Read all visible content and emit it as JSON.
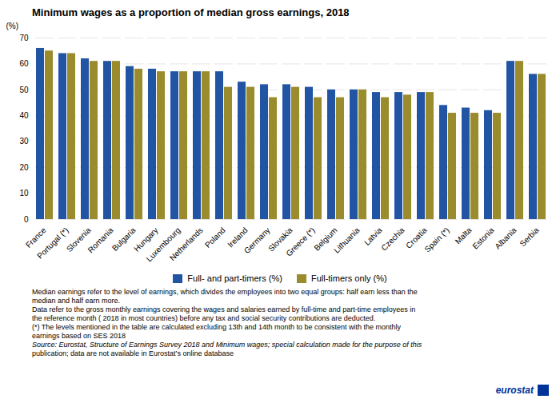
{
  "chart_data": {
    "type": "bar",
    "title": "Minimum wages as a proportion of median gross earnings, 2018",
    "ylabel": "(%)",
    "categories": [
      "France",
      "Portugal (*)",
      "Slovenia",
      "Romania",
      "Bulgaria",
      "Hungary",
      "Luxembourg",
      "Netherlands",
      "Poland",
      "Ireland",
      "Germany",
      "Slovakia",
      "Greece (*)",
      "Belgium",
      "Lithuania",
      "Latvia",
      "Czechia",
      "Croatia",
      "Spain (*)",
      "Malta",
      "Estonia",
      "Albania",
      "Serbia"
    ],
    "series": [
      {
        "name": "Full- and part-timers (%)",
        "color": "#2155A3",
        "values": [
          66,
          64,
          62,
          61,
          59,
          58,
          57,
          57,
          57,
          53,
          52,
          52,
          51,
          50,
          50,
          49,
          49,
          49,
          44,
          43,
          42,
          61,
          56
        ]
      },
      {
        "name": "Full-timers only (%)",
        "color": "#9A8C2C",
        "values": [
          65,
          64,
          61,
          61,
          58,
          57,
          57,
          57,
          51,
          51,
          47,
          51,
          47,
          47,
          50,
          47,
          48,
          49,
          41,
          41,
          41,
          61,
          56
        ]
      }
    ],
    "ylim": [
      0,
      70
    ],
    "yticks": [
      0,
      10,
      20,
      30,
      40,
      50,
      60,
      70
    ],
    "grid": true,
    "legend": "bottom",
    "annotations": [
      "Median earnings refer to the level of earnings, which divides the employees into two equal groups: half earn less than the",
      "median and half earn more.",
      "Data refer to the gross monthly earnings covering the wages and salaries earned by full-time and part-time employees in",
      "the reference month ( 2018 in most countries) before any tax and social security contributions  are deducted.",
      "(*) The levels mentioned in the table are calculated excluding 13th and 14th month to be consistent with the monthly",
      "earnings based on SES 2018",
      "Source: Eurostat, Structure of Earnings Survey 2018 and Minimum wages; special calculation made for the purpose of this",
      "publication; data are not available in Eurostat’s online database",
      "eurostat"
    ]
  }
}
